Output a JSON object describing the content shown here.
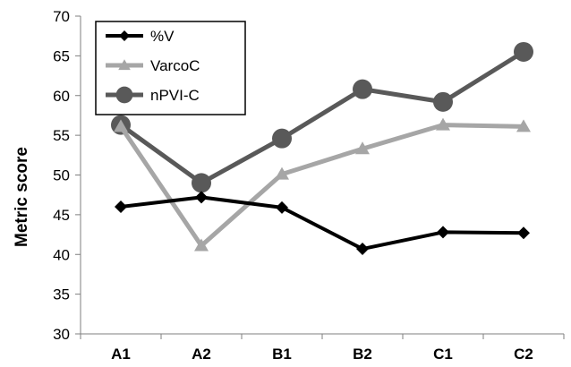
{
  "chart_data": {
    "type": "line",
    "categories": [
      "A1",
      "A2",
      "B1",
      "B2",
      "C1",
      "C2"
    ],
    "ylabel": "Metric score",
    "xlabel": "",
    "ylim": [
      30,
      70
    ],
    "yticks": [
      30,
      35,
      40,
      45,
      50,
      55,
      60,
      65,
      70
    ],
    "grid": false,
    "legend_position": "top-left",
    "series": [
      {
        "name": "%V",
        "marker": "diamond",
        "color": "#000000",
        "values": [
          46.0,
          47.2,
          45.9,
          40.7,
          42.8,
          42.7
        ]
      },
      {
        "name": "VarcoC",
        "marker": "triangle",
        "color": "#a6a6a6",
        "values": [
          56.1,
          41.1,
          50.1,
          53.3,
          56.3,
          56.1
        ]
      },
      {
        "name": "nPVI-C",
        "marker": "circle",
        "color": "#595959",
        "values": [
          56.3,
          49.0,
          54.6,
          60.8,
          59.2,
          65.5
        ]
      }
    ]
  }
}
